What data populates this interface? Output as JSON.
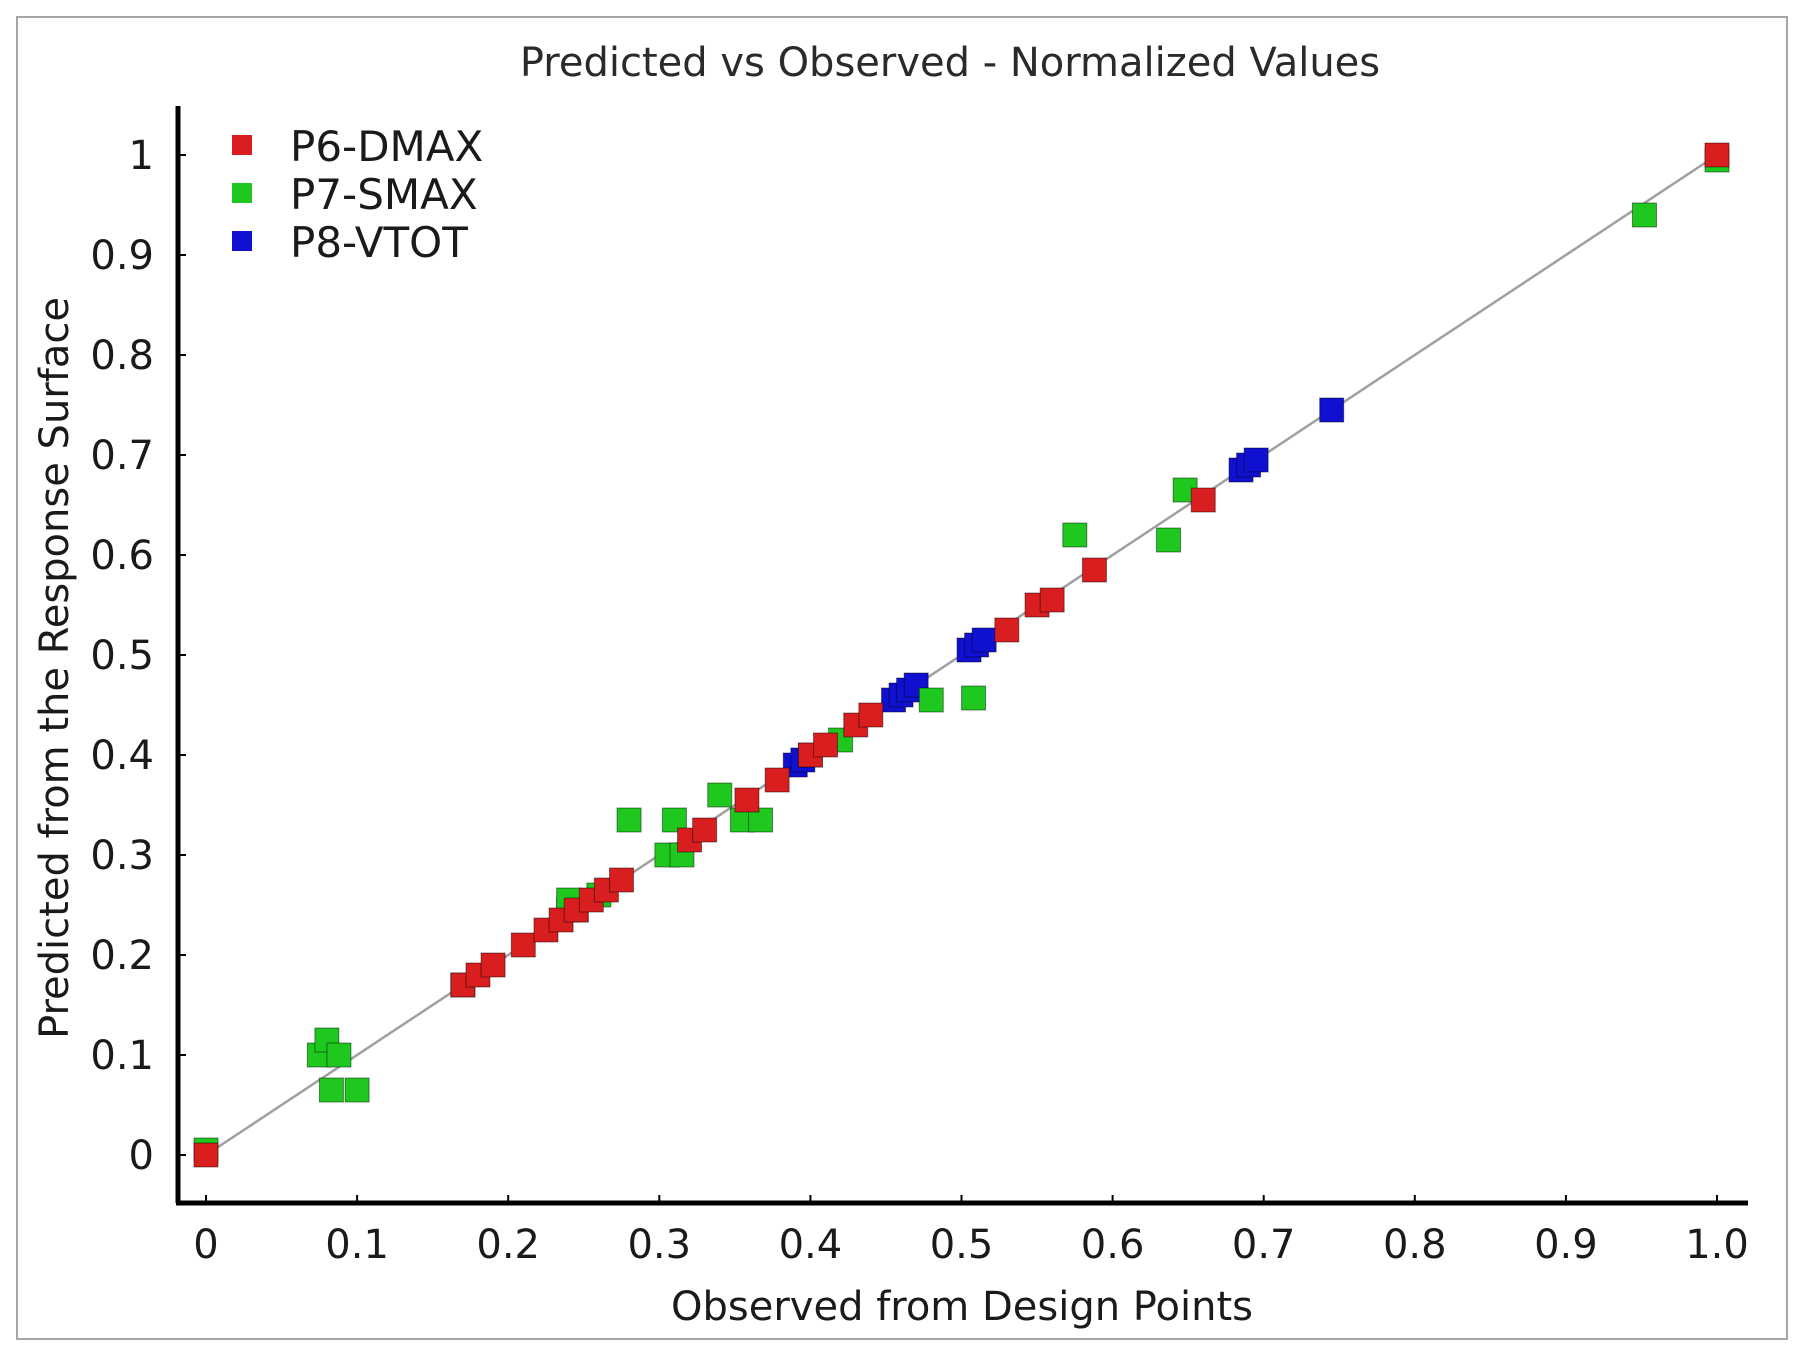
{
  "chart_data": {
    "type": "scatter",
    "title": "Predicted vs Observed - Normalized Values",
    "xlabel": "Observed from Design Points",
    "ylabel": "Predicted from the Response Surface",
    "xlim": [
      -0.02,
      1.02
    ],
    "ylim": [
      -0.05,
      1.05
    ],
    "x_ticks": [
      0,
      0.1,
      0.2,
      0.3,
      0.4,
      0.5,
      0.6,
      0.7,
      0.8,
      0.9,
      1.0
    ],
    "x_tick_labels": [
      "0",
      "0.1",
      "0.2",
      "0.3",
      "0.4",
      "0.5",
      "0.6",
      "0.7",
      "0.8",
      "0.9",
      "1.0"
    ],
    "y_ticks": [
      0,
      0.1,
      0.2,
      0.3,
      0.4,
      0.5,
      0.6,
      0.7,
      0.8,
      0.9,
      1
    ],
    "y_tick_labels": [
      "0",
      "0.1",
      "0.2",
      "0.3",
      "0.4",
      "0.5",
      "0.6",
      "0.7",
      "0.8",
      "0.9",
      "1"
    ],
    "reference_line": {
      "from": [
        0,
        0
      ],
      "to": [
        1,
        1
      ],
      "color": "#a0a0a0"
    },
    "legend_position": "top-left",
    "series": [
      {
        "name": "P8-VTOT",
        "color": "#1010d0",
        "points": [
          [
            0.17,
            0.17
          ],
          [
            0.24,
            0.245
          ],
          [
            0.245,
            0.245
          ],
          [
            0.39,
            0.39
          ],
          [
            0.395,
            0.395
          ],
          [
            0.4,
            0.4
          ],
          [
            0.455,
            0.455
          ],
          [
            0.46,
            0.46
          ],
          [
            0.465,
            0.465
          ],
          [
            0.47,
            0.47
          ],
          [
            0.505,
            0.505
          ],
          [
            0.51,
            0.51
          ],
          [
            0.515,
            0.515
          ],
          [
            0.685,
            0.685
          ],
          [
            0.69,
            0.69
          ],
          [
            0.695,
            0.695
          ],
          [
            0.745,
            0.745
          ]
        ]
      },
      {
        "name": "P7-SMAX",
        "color": "#1ec81e",
        "points": [
          [
            0.0,
            0.005
          ],
          [
            0.075,
            0.1
          ],
          [
            0.08,
            0.115
          ],
          [
            0.083,
            0.065
          ],
          [
            0.088,
            0.1
          ],
          [
            0.1,
            0.065
          ],
          [
            0.24,
            0.255
          ],
          [
            0.26,
            0.26
          ],
          [
            0.28,
            0.335
          ],
          [
            0.305,
            0.3
          ],
          [
            0.31,
            0.335
          ],
          [
            0.315,
            0.3
          ],
          [
            0.34,
            0.36
          ],
          [
            0.355,
            0.335
          ],
          [
            0.367,
            0.335
          ],
          [
            0.42,
            0.415
          ],
          [
            0.48,
            0.455
          ],
          [
            0.508,
            0.457
          ],
          [
            0.575,
            0.62
          ],
          [
            0.637,
            0.615
          ],
          [
            0.648,
            0.665
          ],
          [
            0.952,
            0.94
          ],
          [
            1.0,
            0.995
          ]
        ]
      },
      {
        "name": "P6-DMAX",
        "color": "#d81e1e",
        "points": [
          [
            0.0,
            0.0
          ],
          [
            0.17,
            0.17
          ],
          [
            0.18,
            0.18
          ],
          [
            0.19,
            0.19
          ],
          [
            0.21,
            0.21
          ],
          [
            0.225,
            0.225
          ],
          [
            0.235,
            0.235
          ],
          [
            0.245,
            0.245
          ],
          [
            0.255,
            0.255
          ],
          [
            0.265,
            0.265
          ],
          [
            0.275,
            0.275
          ],
          [
            0.32,
            0.315
          ],
          [
            0.33,
            0.325
          ],
          [
            0.358,
            0.355
          ],
          [
            0.378,
            0.375
          ],
          [
            0.4,
            0.4
          ],
          [
            0.41,
            0.41
          ],
          [
            0.43,
            0.43
          ],
          [
            0.44,
            0.44
          ],
          [
            0.53,
            0.525
          ],
          [
            0.55,
            0.55
          ],
          [
            0.56,
            0.555
          ],
          [
            0.588,
            0.585
          ],
          [
            0.66,
            0.655
          ],
          [
            1.0,
            1.0
          ]
        ]
      }
    ],
    "legend": [
      {
        "name": "P6-DMAX",
        "color": "#d81e1e"
      },
      {
        "name": "P7-SMAX",
        "color": "#1ec81e"
      },
      {
        "name": "P8-VTOT",
        "color": "#1010d0"
      }
    ]
  }
}
